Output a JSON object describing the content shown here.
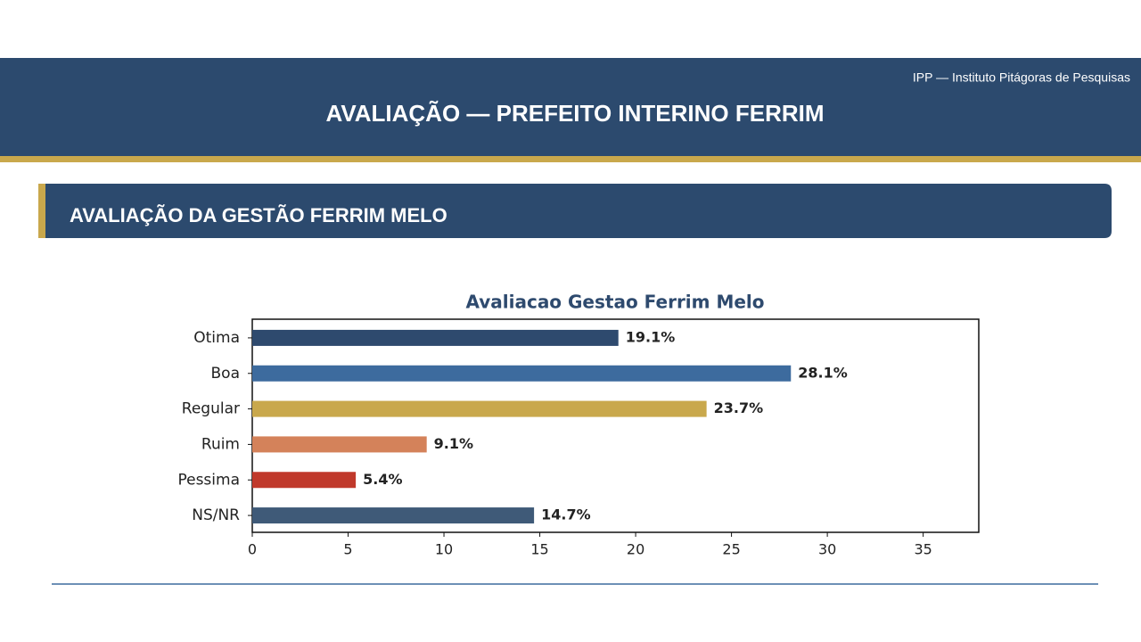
{
  "header": {
    "source": "IPP — Instituto Pitágoras de Pesquisas",
    "title": "AVALIAÇÃO — PREFEITO INTERINO FERRIM"
  },
  "section": {
    "title": "AVALIAÇÃO DA GESTÃO FERRIM MELO"
  },
  "chart_data": {
    "type": "barh",
    "title": "Avaliacao Gestao Ferrim Melo",
    "categories": [
      "Otima",
      "Boa",
      "Regular",
      "Ruim",
      "Pessima",
      "NS/NR"
    ],
    "values": [
      19.1,
      28.1,
      23.7,
      9.1,
      5.4,
      14.7
    ],
    "value_labels": [
      "19.1%",
      "28.1%",
      "23.7%",
      "9.1%",
      "5.4%",
      "14.7%"
    ],
    "colors": [
      "#2e4a6e",
      "#3d6b9e",
      "#c9a84c",
      "#d4825a",
      "#c0392b",
      "#3f5a78"
    ],
    "xlim": [
      0,
      37.9
    ],
    "xticks": [
      0,
      5,
      10,
      15,
      20,
      25,
      30,
      35
    ],
    "grid": false
  }
}
